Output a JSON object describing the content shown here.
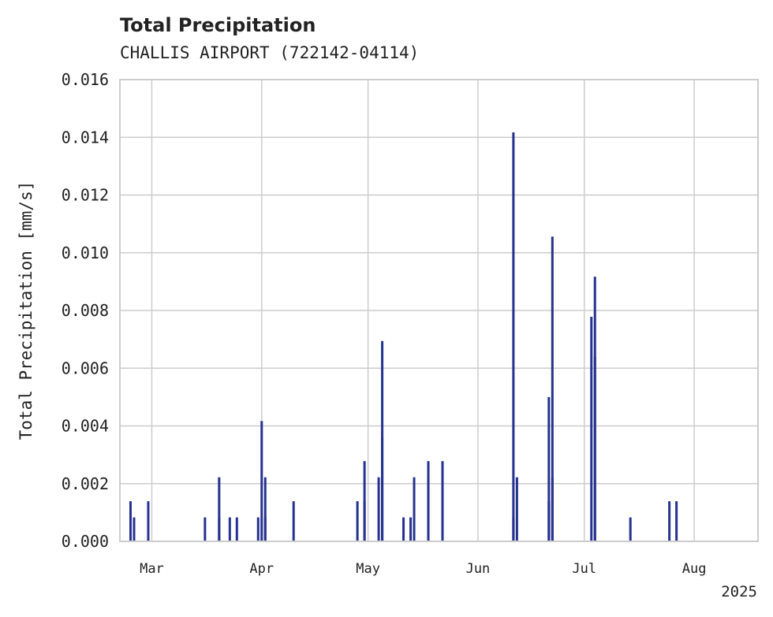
{
  "chart_data": {
    "type": "bar",
    "title": "Total Precipitation",
    "subtitle": "CHALLIS AIRPORT (722142-04114)",
    "ylabel": "Total Precipitation [mm/s]",
    "xlabel": "",
    "x_offset_label": "2025",
    "ylim": [
      0,
      0.016
    ],
    "xlim": [
      "2025-02-20",
      "2025-08-19"
    ],
    "yticks": [
      "0.000",
      "0.002",
      "0.004",
      "0.006",
      "0.008",
      "0.010",
      "0.012",
      "0.014",
      "0.016"
    ],
    "xticks": [
      {
        "label": "Mar",
        "date": "2025-03-01"
      },
      {
        "label": "Apr",
        "date": "2025-04-01"
      },
      {
        "label": "May",
        "date": "2025-05-01"
      },
      {
        "label": "Jun",
        "date": "2025-06-01"
      },
      {
        "label": "Jul",
        "date": "2025-07-01"
      },
      {
        "label": "Aug",
        "date": "2025-08-01"
      }
    ],
    "grid": true,
    "bar_color": "#26328f",
    "points": [
      {
        "date": "2025-02-23",
        "value": 0.00139
      },
      {
        "date": "2025-02-24",
        "value": 0.00083
      },
      {
        "date": "2025-02-28",
        "value": 0.00139
      },
      {
        "date": "2025-03-16",
        "value": 0.00083
      },
      {
        "date": "2025-03-20",
        "value": 0.00222
      },
      {
        "date": "2025-03-20",
        "value": 0.00083
      },
      {
        "date": "2025-03-23",
        "value": 0.00083
      },
      {
        "date": "2025-03-25",
        "value": 0.00083
      },
      {
        "date": "2025-03-31",
        "value": 0.00083
      },
      {
        "date": "2025-04-01",
        "value": 0.00417
      },
      {
        "date": "2025-04-02",
        "value": 0.00222
      },
      {
        "date": "2025-04-02",
        "value": 0.00083
      },
      {
        "date": "2025-04-10",
        "value": 0.00139
      },
      {
        "date": "2025-04-28",
        "value": 0.00139
      },
      {
        "date": "2025-04-30",
        "value": 0.00278
      },
      {
        "date": "2025-04-30",
        "value": 0.00139
      },
      {
        "date": "2025-05-04",
        "value": 0.00222
      },
      {
        "date": "2025-05-05",
        "value": 0.00361
      },
      {
        "date": "2025-05-05",
        "value": 0.00694
      },
      {
        "date": "2025-05-11",
        "value": 0.00083
      },
      {
        "date": "2025-05-13",
        "value": 0.00083
      },
      {
        "date": "2025-05-14",
        "value": 0.00222
      },
      {
        "date": "2025-05-18",
        "value": 0.00222
      },
      {
        "date": "2025-05-18",
        "value": 0.00278
      },
      {
        "date": "2025-05-22",
        "value": 0.00278
      },
      {
        "date": "2025-06-11",
        "value": 0.01417
      },
      {
        "date": "2025-06-11",
        "value": 0.00083
      },
      {
        "date": "2025-06-12",
        "value": 0.00222
      },
      {
        "date": "2025-06-21",
        "value": 0.00139
      },
      {
        "date": "2025-06-21",
        "value": 0.005
      },
      {
        "date": "2025-06-22",
        "value": 0.01056
      },
      {
        "date": "2025-06-22",
        "value": 0.00222
      },
      {
        "date": "2025-07-03",
        "value": 0.00778
      },
      {
        "date": "2025-07-04",
        "value": 0.00917
      },
      {
        "date": "2025-07-04",
        "value": 0.00639
      },
      {
        "date": "2025-07-14",
        "value": 0.00083
      },
      {
        "date": "2025-07-25",
        "value": 0.00139
      },
      {
        "date": "2025-07-27",
        "value": 0.00139
      }
    ]
  }
}
